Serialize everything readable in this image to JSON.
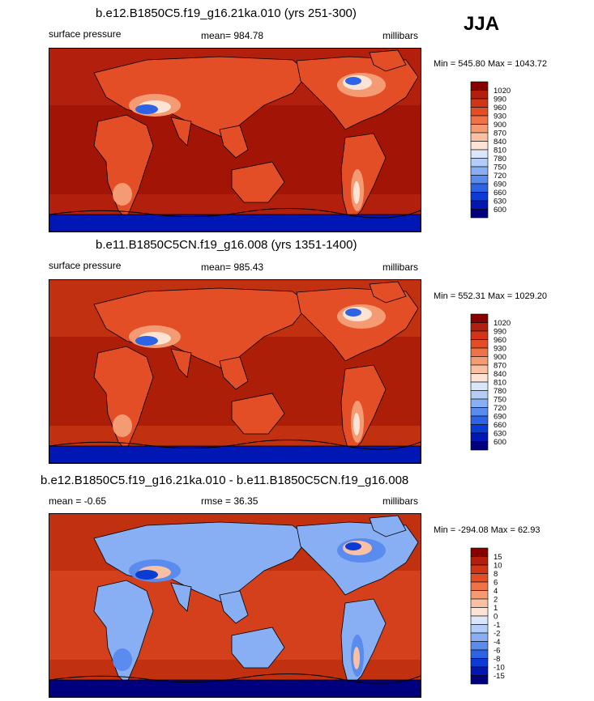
{
  "season": "JJA",
  "colors": {
    "contour": "#000000",
    "palette": [
      "#00007f",
      "#0017b3",
      "#0a3bd4",
      "#2d63e4",
      "#5a8bef",
      "#88aef3",
      "#b4cdf7",
      "#d9e6fb",
      "#fde3d4",
      "#f9c0a3",
      "#f59b73",
      "#ee7447",
      "#e34e26",
      "#cf3516",
      "#b21f0c",
      "#860000"
    ]
  },
  "panels": [
    {
      "title": "b.e12.B1850C5.f19_g16.21ka.010 (yrs 251-300)",
      "left_label": "surface pressure",
      "center_label": "mean= 984.78",
      "right_label": "millibars",
      "minmax": "Min = 545.80 Max = 1043.72",
      "colorbar_labels": [
        "1020",
        "990",
        "960",
        "930",
        "900",
        "870",
        "840",
        "810",
        "780",
        "750",
        "720",
        "690",
        "660",
        "630",
        "600"
      ],
      "background_color": "#b92a10",
      "region_colors": {
        "ocean": "#b21f0c",
        "ocean_dark": "#950c02",
        "land": "#e34e26",
        "highland": "#f59b73",
        "peak": "#fde3d4",
        "low": "#2d63e4",
        "lowest": "#0017b3"
      }
    },
    {
      "title": "b.e11.B1850C5CN.f19_g16.008 (yrs 1351-1400)",
      "left_label": "surface pressure",
      "center_label": "mean= 985.43",
      "right_label": "millibars",
      "minmax": "Min = 552.31 Max = 1029.20",
      "colorbar_labels": [
        "1020",
        "990",
        "960",
        "930",
        "900",
        "870",
        "840",
        "810",
        "780",
        "750",
        "720",
        "690",
        "660",
        "630",
        "600"
      ],
      "background_color": "#b92a10",
      "region_colors": {
        "ocean": "#c1300f",
        "ocean_dark": "#9a1104",
        "land": "#e34e26",
        "highland": "#f59b73",
        "peak": "#fde3d4",
        "low": "#2d63e4",
        "lowest": "#0017b3"
      }
    },
    {
      "title": "b.e12.B1850C5.f19_g16.21ka.010 - b.e11.B1850C5CN.f19_g16.008",
      "left_label": "mean =  -0.65",
      "center_label": "rmse =  36.35",
      "right_label": "millibars",
      "minmax": "Min = -294.08 Max =  62.93",
      "colorbar_labels": [
        "15",
        "10",
        "8",
        "6",
        "4",
        "2",
        "1",
        "0",
        "-1",
        "-2",
        "-4",
        "-6",
        "-8",
        "-10",
        "-15"
      ],
      "background_color": "#b92a10",
      "region_colors": {
        "ocean": "#c1300f",
        "ocean_dark": "#e34e26",
        "land": "#88aef3",
        "highland": "#5a8bef",
        "peak": "#f9c0a3",
        "low": "#0a3bd4",
        "lowest": "#00007f"
      }
    }
  ],
  "chart_data": [
    {
      "type": "heatmap",
      "title": "b.e12.B1850C5.f19_g16.21ka.010 (yrs 251-300)",
      "variable": "surface pressure",
      "units": "millibars",
      "mean": 984.78,
      "min": 545.8,
      "max": 1043.72,
      "levels": [
        600,
        630,
        660,
        690,
        720,
        750,
        780,
        810,
        840,
        870,
        900,
        930,
        960,
        990,
        1020
      ]
    },
    {
      "type": "heatmap",
      "title": "b.e11.B1850C5CN.f19_g16.008 (yrs 1351-1400)",
      "variable": "surface pressure",
      "units": "millibars",
      "mean": 985.43,
      "min": 552.31,
      "max": 1029.2,
      "levels": [
        600,
        630,
        660,
        690,
        720,
        750,
        780,
        810,
        840,
        870,
        900,
        930,
        960,
        990,
        1020
      ]
    },
    {
      "type": "heatmap",
      "title": "b.e12.B1850C5.f19_g16.21ka.010 - b.e11.B1850C5CN.f19_g16.008",
      "units": "millibars",
      "mean": -0.65,
      "rmse": 36.35,
      "min": -294.08,
      "max": 62.93,
      "levels": [
        -15,
        -10,
        -8,
        -6,
        -4,
        -2,
        -1,
        0,
        1,
        2,
        4,
        6,
        8,
        10,
        15
      ]
    }
  ]
}
